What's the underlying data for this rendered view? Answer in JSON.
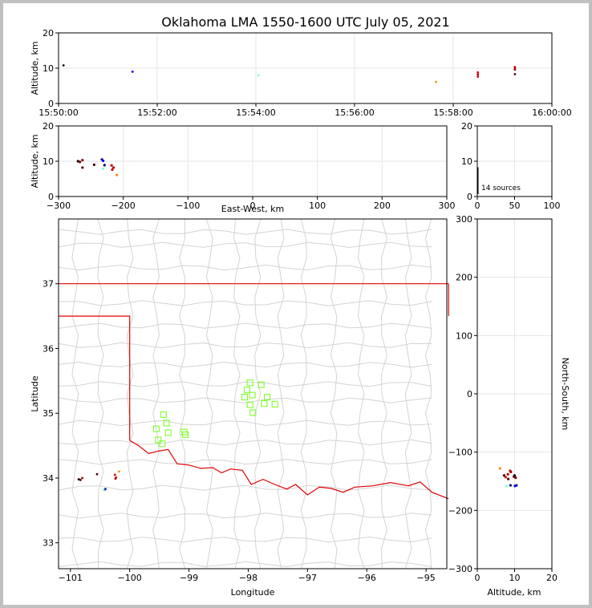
{
  "title": "Oklahoma LMA 1550-1600 UTC July 05, 2021",
  "colors": {
    "grid": "#e6e6e6",
    "county": "#d3d3d3",
    "state": "#e00000",
    "box": "#7fff2a"
  },
  "chart_data": [
    {
      "type": "scatter",
      "id": "alt_time",
      "ylabel": "Altitude, km",
      "ylim": [
        0,
        20
      ],
      "yticks": [
        "0",
        "10",
        "20"
      ],
      "xticks": [
        "15:50:00",
        "15:52:00",
        "15:54:00",
        "15:56:00",
        "15:58:00",
        "16:00:00"
      ],
      "points": [
        {
          "t": 0.1,
          "y": 10.8,
          "c": "#220000"
        },
        {
          "t": 1.5,
          "y": 9.0,
          "c": "#0000ff"
        },
        {
          "t": 4.05,
          "y": 8.0,
          "c": "#7fffd4"
        },
        {
          "t": 7.65,
          "y": 6.1,
          "c": "#ff8c00"
        },
        {
          "t": 8.5,
          "y": 8.8,
          "c": "#dd0000"
        },
        {
          "t": 8.5,
          "y": 7.6,
          "c": "#cc0000"
        },
        {
          "t": 8.5,
          "y": 8.2,
          "c": "#aa0000"
        },
        {
          "t": 9.25,
          "y": 10.3,
          "c": "#990000"
        },
        {
          "t": 9.25,
          "y": 9.6,
          "c": "#770000"
        },
        {
          "t": 9.25,
          "y": 10.0,
          "c": "#cc0000"
        },
        {
          "t": 9.25,
          "y": 8.3,
          "c": "#550000"
        }
      ]
    },
    {
      "type": "scatter",
      "id": "alt_ew",
      "xlabel": "East-West, km",
      "ylabel": "Altitude, km",
      "xlim": [
        -300,
        300
      ],
      "ylim": [
        0,
        20
      ],
      "xticks": [
        "−300",
        "−200",
        "−100",
        "0",
        "100",
        "200",
        "300"
      ],
      "yticks": [
        "0",
        "10",
        "20"
      ],
      "points": [
        {
          "x": -270,
          "y": 10.0,
          "c": "#220000"
        },
        {
          "x": -267,
          "y": 9.8,
          "c": "#660000"
        },
        {
          "x": -263,
          "y": 10.3,
          "c": "#880000"
        },
        {
          "x": -263,
          "y": 8.2,
          "c": "#550000"
        },
        {
          "x": -245,
          "y": 9.0,
          "c": "#440000"
        },
        {
          "x": -233,
          "y": 10.5,
          "c": "#0000aa"
        },
        {
          "x": -231,
          "y": 10.1,
          "c": "#0000ff"
        },
        {
          "x": -229,
          "y": 8.9,
          "c": "#000066"
        },
        {
          "x": -231,
          "y": 7.9,
          "c": "#7fffd4"
        },
        {
          "x": -218,
          "y": 8.8,
          "c": "#cc0000"
        },
        {
          "x": -217,
          "y": 7.6,
          "c": "#dd0000"
        },
        {
          "x": -215,
          "y": 8.2,
          "c": "#aa0000"
        },
        {
          "x": -210,
          "y": 6.1,
          "c": "#ff8c00"
        }
      ]
    },
    {
      "type": "histogram",
      "id": "alt_hist",
      "xlim": [
        0,
        100
      ],
      "ylim": [
        0,
        20
      ],
      "xticks": [
        "0",
        "50",
        "100"
      ],
      "yticks": [
        "0",
        "10",
        "20"
      ],
      "annotation": "14 sources"
    },
    {
      "type": "map",
      "id": "lat_lon",
      "xlabel": "Longitude",
      "ylabel": "Latitude",
      "xlim": [
        -101.2,
        -94.65
      ],
      "ylim": [
        32.6,
        38.0
      ],
      "xticks": [
        "−101",
        "−100",
        "−99",
        "−98",
        "−97",
        "−96",
        "−95"
      ],
      "yticks": [
        "33",
        "34",
        "35",
        "36",
        "37"
      ],
      "network": [
        {
          "lon": -97.97,
          "lat": 35.47
        },
        {
          "lon": -97.78,
          "lat": 35.44
        },
        {
          "lon": -98.02,
          "lat": 35.36
        },
        {
          "lon": -97.93,
          "lat": 35.28
        },
        {
          "lon": -98.06,
          "lat": 35.25
        },
        {
          "lon": -97.68,
          "lat": 35.25
        },
        {
          "lon": -97.73,
          "lat": 35.15
        },
        {
          "lon": -97.55,
          "lat": 35.14
        },
        {
          "lon": -97.97,
          "lat": 35.13
        },
        {
          "lon": -97.92,
          "lat": 35.01
        },
        {
          "lon": -99.43,
          "lat": 34.98
        },
        {
          "lon": -99.38,
          "lat": 34.85
        },
        {
          "lon": -99.55,
          "lat": 34.76
        },
        {
          "lon": -99.35,
          "lat": 34.7
        },
        {
          "lon": -99.08,
          "lat": 34.71
        },
        {
          "lon": -99.06,
          "lat": 34.67
        },
        {
          "lon": -99.52,
          "lat": 34.59
        },
        {
          "lon": -99.45,
          "lat": 34.53
        }
      ],
      "points": [
        {
          "lon": -100.86,
          "lat": 33.98,
          "c": "#220000"
        },
        {
          "lon": -100.83,
          "lat": 33.97,
          "c": "#550000"
        },
        {
          "lon": -100.8,
          "lat": 34.0,
          "c": "#880000"
        },
        {
          "lon": -100.55,
          "lat": 34.06,
          "c": "#440000"
        },
        {
          "lon": -100.43,
          "lat": 33.82,
          "c": "#0000ff"
        },
        {
          "lon": -100.41,
          "lat": 33.83,
          "c": "#0000aa"
        },
        {
          "lon": -100.44,
          "lat": 33.82,
          "c": "#7fffd4"
        },
        {
          "lon": -100.25,
          "lat": 34.05,
          "c": "#cc0000"
        },
        {
          "lon": -100.23,
          "lat": 34.01,
          "c": "#dd0000"
        },
        {
          "lon": -100.24,
          "lat": 33.99,
          "c": "#aa0000"
        },
        {
          "lon": -100.18,
          "lat": 34.1,
          "c": "#ff8c00"
        }
      ]
    },
    {
      "type": "scatter",
      "id": "ns_alt",
      "xlabel": "Altitude, km",
      "ylabel": "North-South, km",
      "xlim": [
        0,
        20
      ],
      "ylim": [
        -300,
        300
      ],
      "xticks": [
        "0",
        "10",
        "20"
      ],
      "yticks": [
        "−300",
        "−200",
        "−100",
        "0",
        "100",
        "200",
        "300"
      ],
      "points": [
        {
          "x": 6.1,
          "y": -128,
          "c": "#ff8c00"
        },
        {
          "x": 7.2,
          "y": -140,
          "c": "#440000"
        },
        {
          "x": 7.6,
          "y": -143,
          "c": "#dd0000"
        },
        {
          "x": 8.2,
          "y": -138,
          "c": "#aa0000"
        },
        {
          "x": 8.8,
          "y": -132,
          "c": "#cc0000"
        },
        {
          "x": 8.3,
          "y": -146,
          "c": "#550000"
        },
        {
          "x": 9.0,
          "y": -134,
          "c": "#990000"
        },
        {
          "x": 9.8,
          "y": -142,
          "c": "#660000"
        },
        {
          "x": 10.3,
          "y": -144,
          "c": "#880000"
        },
        {
          "x": 10.0,
          "y": -140,
          "c": "#220000"
        },
        {
          "x": 7.9,
          "y": -158,
          "c": "#7fffd4"
        },
        {
          "x": 8.9,
          "y": -157,
          "c": "#000066"
        },
        {
          "x": 10.1,
          "y": -158,
          "c": "#0000ff"
        },
        {
          "x": 10.5,
          "y": -157,
          "c": "#0000aa"
        }
      ]
    }
  ]
}
